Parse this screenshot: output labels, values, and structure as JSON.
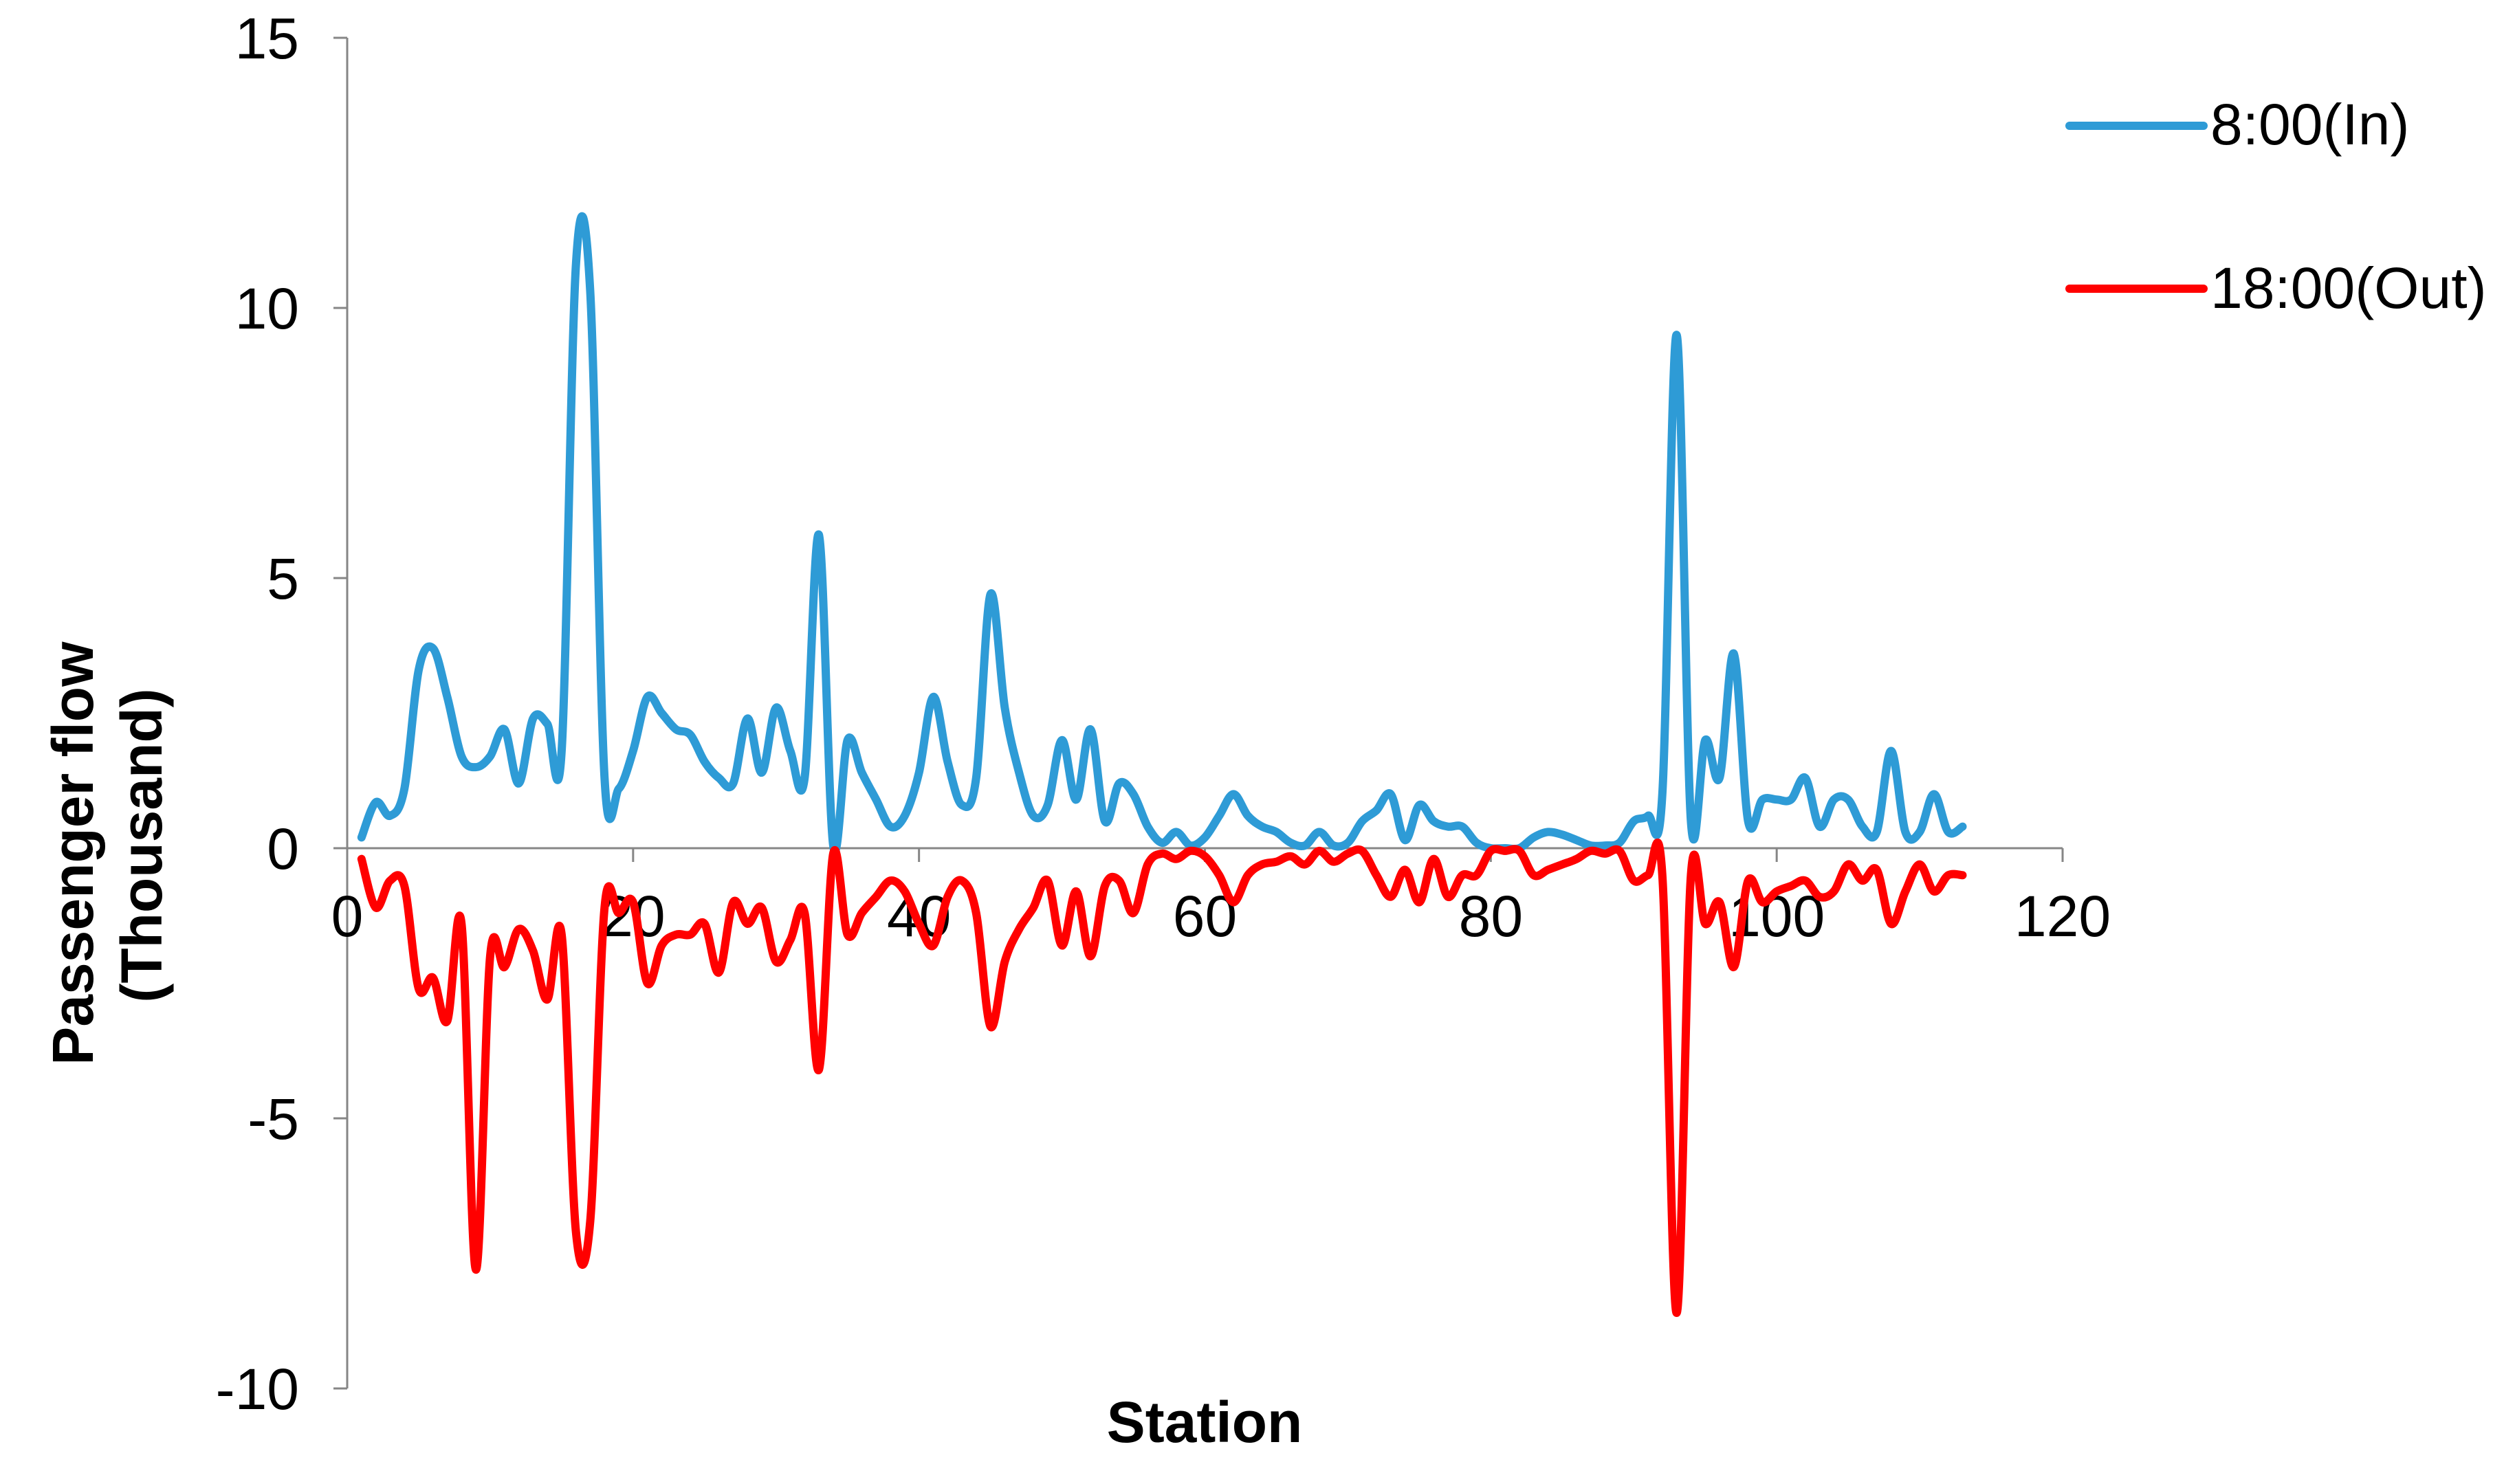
{
  "chart_data": {
    "type": "line",
    "title": "",
    "xlabel": "Station",
    "ylabel": "Passenger flow\n(Thousand)",
    "xlim": [
      0,
      120
    ],
    "ylim": [
      -10,
      15
    ],
    "xticks": [
      0,
      20,
      40,
      60,
      80,
      100,
      120
    ],
    "yticks": [
      -10,
      -5,
      0,
      5,
      10,
      15
    ],
    "grid": false,
    "legend_position": "top-right",
    "series": [
      {
        "name": "8:00(In)",
        "color": "#2e9bd6",
        "values": [
          0.2,
          0.85,
          0.6,
          1.1,
          3.3,
          3.7,
          2.8,
          1.7,
          1.5,
          1.7,
          2.2,
          1.2,
          2.4,
          2.3,
          1.8,
          10.8,
          10.3,
          1.3,
          1.1,
          1.8,
          2.8,
          2.5,
          2.2,
          2.1,
          1.6,
          1.3,
          1.2,
          2.4,
          1.4,
          2.6,
          1.8,
          1.3,
          5.8,
          0.05,
          2.0,
          1.4,
          0.9,
          0.4,
          0.6,
          1.4,
          2.8,
          1.6,
          0.8,
          1.3,
          4.7,
          2.6,
          1.4,
          0.6,
          0.8,
          2.0,
          0.9,
          2.2,
          0.5,
          1.2,
          1.0,
          0.4,
          0.1,
          0.3,
          0.05,
          0.2,
          0.6,
          1.0,
          0.6,
          0.4,
          0.3,
          0.1,
          0.05,
          0.3,
          0.05,
          0.1,
          0.5,
          0.7,
          1.0,
          0.15,
          0.8,
          0.5,
          0.4,
          0.4,
          0.1,
          0.0,
          0.0,
          0.0,
          0.2,
          0.3,
          0.25,
          0.15,
          0.05,
          0.05,
          0.1,
          0.5,
          0.6,
          1.0,
          9.5,
          0.5,
          2.0,
          1.3,
          3.6,
          0.5,
          0.9,
          0.9,
          0.9,
          1.3,
          0.4,
          0.9,
          0.9,
          0.4,
          0.3,
          1.8,
          0.3,
          0.3,
          1.0,
          0.3,
          0.4
        ],
        "x_start": 1
      },
      {
        "name": "18:00(Out)",
        "color": "#ff0000",
        "values": [
          -0.2,
          -1.1,
          -0.6,
          -0.7,
          -2.6,
          -2.4,
          -3.2,
          -1.4,
          -7.8,
          -2.0,
          -2.2,
          -1.5,
          -1.9,
          -2.8,
          -1.6,
          -7.1,
          -6.9,
          -1.1,
          -1.2,
          -1.0,
          -2.5,
          -1.8,
          -1.6,
          -1.6,
          -1.4,
          -2.3,
          -1.0,
          -1.4,
          -1.1,
          -2.1,
          -1.7,
          -1.2,
          -4.1,
          -0.1,
          -1.6,
          -1.2,
          -0.9,
          -0.6,
          -0.8,
          -1.4,
          -1.8,
          -0.9,
          -0.6,
          -1.2,
          -3.3,
          -2.1,
          -1.5,
          -1.1,
          -0.6,
          -1.8,
          -0.8,
          -2.0,
          -0.7,
          -0.6,
          -1.2,
          -0.3,
          -0.1,
          -0.2,
          -0.05,
          -0.15,
          -0.5,
          -1.0,
          -0.5,
          -0.3,
          -0.25,
          -0.15,
          -0.3,
          -0.05,
          -0.25,
          -0.1,
          -0.05,
          -0.5,
          -0.9,
          -0.4,
          -1.0,
          -0.2,
          -0.9,
          -0.5,
          -0.5,
          -0.05,
          -0.05,
          -0.05,
          -0.5,
          -0.4,
          -0.3,
          -0.2,
          -0.05,
          -0.1,
          -0.05,
          -0.6,
          -0.5,
          -0.5,
          -8.6,
          -0.5,
          -1.4,
          -1.0,
          -2.2,
          -0.6,
          -1.0,
          -0.8,
          -0.7,
          -0.6,
          -0.9,
          -0.8,
          -0.3,
          -0.6,
          -0.4,
          -1.4,
          -0.8,
          -0.3,
          -0.8,
          -0.5,
          -0.5
        ],
        "x_start": 1
      }
    ]
  }
}
